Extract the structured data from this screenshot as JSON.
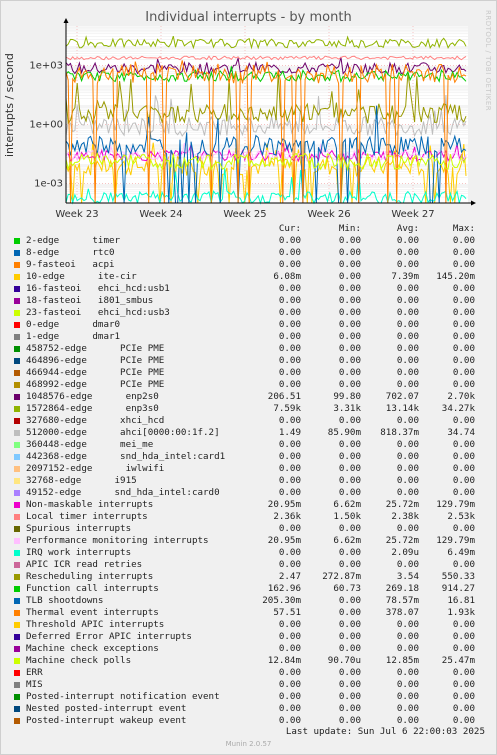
{
  "chart_data": {
    "type": "line",
    "title": "Individual interrupts - by month",
    "side_label": "RRDTOOL / TOBI OETIKER",
    "ylabel": "interrupts / second",
    "yscale": "log",
    "y_ticks": [
      "1e-03",
      "1e+00",
      "1e+03"
    ],
    "ylim": [
      0.0001,
      100000
    ],
    "x_ticks": [
      "Week 23",
      "Week 24",
      "Week 25",
      "Week 26",
      "Week 27"
    ],
    "grid": true,
    "legend_placement": "bottom",
    "columns": [
      "Cur:",
      "Min:",
      "Avg:",
      "Max:"
    ],
    "series": [
      {
        "name": "2-edge      timer",
        "color": "#00cc00",
        "cur": "0.00",
        "min": "0.00",
        "avg": "0.00",
        "max": "0.00"
      },
      {
        "name": "8-edge      rtc0",
        "color": "#0066b3",
        "cur": "0.00",
        "min": "0.00",
        "avg": "0.00",
        "max": "0.00"
      },
      {
        "name": "9-fasteoi   acpi",
        "color": "#ff8000",
        "cur": "0.00",
        "min": "0.00",
        "avg": "0.00",
        "max": "0.00"
      },
      {
        "name": "10-edge      ite-cir",
        "color": "#ffcc00",
        "cur": "6.08m",
        "min": "0.00",
        "avg": "7.39m",
        "max": "145.20m"
      },
      {
        "name": "16-fasteoi   ehci_hcd:usb1",
        "color": "#330099",
        "cur": "0.00",
        "min": "0.00",
        "avg": "0.00",
        "max": "0.00"
      },
      {
        "name": "18-fasteoi   i801_smbus",
        "color": "#990099",
        "cur": "0.00",
        "min": "0.00",
        "avg": "0.00",
        "max": "0.00"
      },
      {
        "name": "23-fasteoi   ehci_hcd:usb3",
        "color": "#ccff00",
        "cur": "0.00",
        "min": "0.00",
        "avg": "0.00",
        "max": "0.00"
      },
      {
        "name": "0-edge      dmar0",
        "color": "#ff0000",
        "cur": "0.00",
        "min": "0.00",
        "avg": "0.00",
        "max": "0.00"
      },
      {
        "name": "1-edge      dmar1",
        "color": "#808080",
        "cur": "0.00",
        "min": "0.00",
        "avg": "0.00",
        "max": "0.00"
      },
      {
        "name": "458752-edge      PCIe PME",
        "color": "#008f00",
        "cur": "0.00",
        "min": "0.00",
        "avg": "0.00",
        "max": "0.00"
      },
      {
        "name": "464896-edge      PCIe PME",
        "color": "#00487d",
        "cur": "0.00",
        "min": "0.00",
        "avg": "0.00",
        "max": "0.00"
      },
      {
        "name": "466944-edge      PCIe PME",
        "color": "#b35a00",
        "cur": "0.00",
        "min": "0.00",
        "avg": "0.00",
        "max": "0.00"
      },
      {
        "name": "468992-edge      PCIe PME",
        "color": "#b38f00",
        "cur": "0.00",
        "min": "0.00",
        "avg": "0.00",
        "max": "0.00"
      },
      {
        "name": "1048576-edge      enp2s0",
        "color": "#6b006b",
        "cur": "206.51",
        "min": "99.80",
        "avg": "702.07",
        "max": "2.70k"
      },
      {
        "name": "1572864-edge      enp3s0",
        "color": "#8fb300",
        "cur": "7.59k",
        "min": "3.31k",
        "avg": "13.14k",
        "max": "34.27k"
      },
      {
        "name": "327680-edge      xhci_hcd",
        "color": "#b30000",
        "cur": "0.00",
        "min": "0.00",
        "avg": "0.00",
        "max": "0.00"
      },
      {
        "name": "512000-edge      ahci[0000:00:1f.2]",
        "color": "#bebebe",
        "cur": "1.49",
        "min": "85.90m",
        "avg": "818.37m",
        "max": "34.74"
      },
      {
        "name": "360448-edge      mei_me",
        "color": "#80ff80",
        "cur": "0.00",
        "min": "0.00",
        "avg": "0.00",
        "max": "0.00"
      },
      {
        "name": "442368-edge      snd_hda_intel:card1",
        "color": "#80c9ff",
        "cur": "0.00",
        "min": "0.00",
        "avg": "0.00",
        "max": "0.00"
      },
      {
        "name": "2097152-edge      iwlwifi",
        "color": "#ffc080",
        "cur": "0.00",
        "min": "0.00",
        "avg": "0.00",
        "max": "0.00"
      },
      {
        "name": "32768-edge      i915",
        "color": "#ffe680",
        "cur": "0.00",
        "min": "0.00",
        "avg": "0.00",
        "max": "0.00"
      },
      {
        "name": "49152-edge      snd_hda_intel:card0",
        "color": "#aa80ff",
        "cur": "0.00",
        "min": "0.00",
        "avg": "0.00",
        "max": "0.00"
      },
      {
        "name": "Non-maskable interrupts",
        "color": "#ee00cc",
        "cur": "20.95m",
        "min": "6.62m",
        "avg": "25.72m",
        "max": "129.79m"
      },
      {
        "name": "Local timer interrupts",
        "color": "#ff8080",
        "cur": "2.36k",
        "min": "1.50k",
        "avg": "2.38k",
        "max": "2.53k"
      },
      {
        "name": "Spurious interrupts",
        "color": "#666600",
        "cur": "0.00",
        "min": "0.00",
        "avg": "0.00",
        "max": "0.00"
      },
      {
        "name": "Performance monitoring interrupts",
        "color": "#ffbfff",
        "cur": "20.95m",
        "min": "6.62m",
        "avg": "25.72m",
        "max": "129.79m"
      },
      {
        "name": "IRQ work interrupts",
        "color": "#00ffcc",
        "cur": "0.00",
        "min": "0.00",
        "avg": "2.09u",
        "max": "6.49m"
      },
      {
        "name": "APIC ICR read retries",
        "color": "#cc6699",
        "cur": "0.00",
        "min": "0.00",
        "avg": "0.00",
        "max": "0.00"
      },
      {
        "name": "Rescheduling interrupts",
        "color": "#999900",
        "cur": "2.47",
        "min": "272.87m",
        "avg": "3.54",
        "max": "550.33"
      },
      {
        "name": "Function call interrupts",
        "color": "#00cc00",
        "cur": "162.96",
        "min": "60.73",
        "avg": "269.18",
        "max": "914.27"
      },
      {
        "name": "TLB shootdowns",
        "color": "#0066b3",
        "cur": "205.30m",
        "min": "0.00",
        "avg": "78.57m",
        "max": "16.81"
      },
      {
        "name": "Thermal event interrupts",
        "color": "#ff8000",
        "cur": "57.51",
        "min": "0.00",
        "avg": "378.07",
        "max": "1.93k"
      },
      {
        "name": "Threshold APIC interrupts",
        "color": "#ffcc00",
        "cur": "0.00",
        "min": "0.00",
        "avg": "0.00",
        "max": "0.00"
      },
      {
        "name": "Deferred Error APIC interrupts",
        "color": "#330099",
        "cur": "0.00",
        "min": "0.00",
        "avg": "0.00",
        "max": "0.00"
      },
      {
        "name": "Machine check exceptions",
        "color": "#990099",
        "cur": "0.00",
        "min": "0.00",
        "avg": "0.00",
        "max": "0.00"
      },
      {
        "name": "Machine check polls",
        "color": "#ccff00",
        "cur": "12.84m",
        "min": "90.70u",
        "avg": "12.85m",
        "max": "25.47m"
      },
      {
        "name": "ERR",
        "color": "#ff0000",
        "cur": "0.00",
        "min": "0.00",
        "avg": "0.00",
        "max": "0.00"
      },
      {
        "name": "MIS",
        "color": "#808080",
        "cur": "0.00",
        "min": "0.00",
        "avg": "0.00",
        "max": "0.00"
      },
      {
        "name": "Posted-interrupt notification event",
        "color": "#008f00",
        "cur": "0.00",
        "min": "0.00",
        "avg": "0.00",
        "max": "0.00"
      },
      {
        "name": "Nested posted-interrupt event",
        "color": "#00487d",
        "cur": "0.00",
        "min": "0.00",
        "avg": "0.00",
        "max": "0.00"
      },
      {
        "name": "Posted-interrupt wakeup event",
        "color": "#b35a00",
        "cur": "0.00",
        "min": "0.00",
        "avg": "0.00",
        "max": "0.00"
      }
    ]
  },
  "last_update": "Last update:  Sun Jul  6 22:00:03 2025",
  "footer": "Munin 2.0.57"
}
